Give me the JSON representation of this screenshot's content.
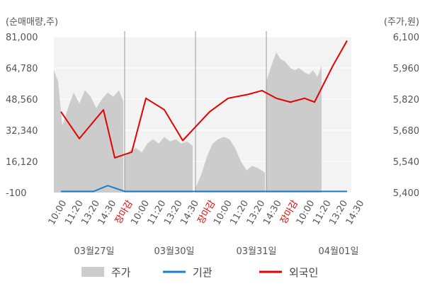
{
  "chart_data": {
    "type": "line",
    "left_unit_label": "(순매매량,주)",
    "right_unit_label": "(주가,원)",
    "left_axis": {
      "ticks": [
        "81,000",
        "64,780",
        "48,560",
        "32,340",
        "16,120",
        "-100"
      ],
      "range": [
        -100,
        81000
      ]
    },
    "right_axis": {
      "ticks": [
        "6,100",
        "5,960",
        "5,820",
        "5,680",
        "5,540",
        "5,400"
      ],
      "range": [
        5400,
        6100
      ]
    },
    "x_tick_labels": [
      "10:00",
      "11:20",
      "13:20",
      "14:30",
      "장마감",
      "10:00",
      "11:20",
      "13:20",
      "14:30",
      "장마감",
      "10:00",
      "11:20",
      "13:20",
      "14:30",
      "장마감",
      "10:00",
      "11:20",
      "13:20",
      "14:30"
    ],
    "close_label": "장마감",
    "dates": [
      "03월27일",
      "03월30일",
      "03월31일",
      "04월01일"
    ],
    "legend": {
      "price": "주가",
      "institution": "기관",
      "foreign": "외국인"
    },
    "colors": {
      "price_fill": "#cccccc",
      "institution": "#1a7fc7",
      "foreign": "#e60000",
      "close_label": "#e60000"
    },
    "series": [
      {
        "name": "외국인",
        "axis": "left",
        "x": [
          0.5,
          1.8,
          3.5,
          4.3,
          5.5,
          6.5,
          7.8,
          9.1,
          11.0,
          12.3,
          13.7,
          14.7,
          15.7,
          16.7,
          17.7,
          18.4,
          19.7,
          20.7
        ],
        "values": [
          42000,
          28000,
          43000,
          18000,
          21000,
          49000,
          43000,
          27000,
          42000,
          49000,
          51000,
          53000,
          49000,
          47000,
          49000,
          47000,
          66000,
          79000
        ]
      },
      {
        "name": "기관",
        "axis": "left",
        "x": [
          0.5,
          1.3,
          2.8,
          3.8,
          5.0,
          7.0,
          10.0,
          13.0,
          16.0,
          19.0,
          20.7
        ],
        "values": [
          500,
          500,
          500,
          3500,
          500,
          500,
          500,
          500,
          500,
          500,
          500
        ]
      },
      {
        "name": "주가",
        "axis": "right",
        "days": [
          {
            "x": [
              0.0,
              0.3,
              0.6,
              1.0,
              1.4,
              1.8,
              2.2,
              2.6,
              3.0,
              3.4,
              3.8,
              4.2,
              4.6,
              4.9
            ],
            "values": [
              5950,
              5900,
              5700,
              5780,
              5850,
              5800,
              5860,
              5830,
              5780,
              5820,
              5850,
              5830,
              5860,
              5810
            ]
          },
          {
            "x": [
              5.0,
              5.4,
              5.8,
              6.2,
              6.6,
              7.0,
              7.4,
              7.8,
              8.2,
              8.6,
              9.0,
              9.4,
              9.8
            ],
            "values": [
              5560,
              5590,
              5600,
              5580,
              5620,
              5640,
              5620,
              5650,
              5630,
              5640,
              5620,
              5630,
              5610
            ]
          },
          {
            "x": [
              10.0,
              10.4,
              10.8,
              11.2,
              11.6,
              12.0,
              12.4,
              12.8,
              13.2,
              13.6,
              14.0,
              14.4,
              14.9
            ],
            "values": [
              5420,
              5480,
              5560,
              5620,
              5640,
              5650,
              5640,
              5600,
              5540,
              5500,
              5520,
              5510,
              5490
            ]
          },
          {
            "x": [
              15.0,
              15.3,
              15.7,
              16.0,
              16.3,
              16.7,
              17.0,
              17.3,
              17.7,
              18.0,
              18.3,
              18.6,
              18.9
            ],
            "values": [
              5900,
              5960,
              6030,
              6000,
              5990,
              5960,
              5950,
              5960,
              5940,
              5930,
              5950,
              5920,
              5970
            ]
          }
        ]
      }
    ]
  }
}
